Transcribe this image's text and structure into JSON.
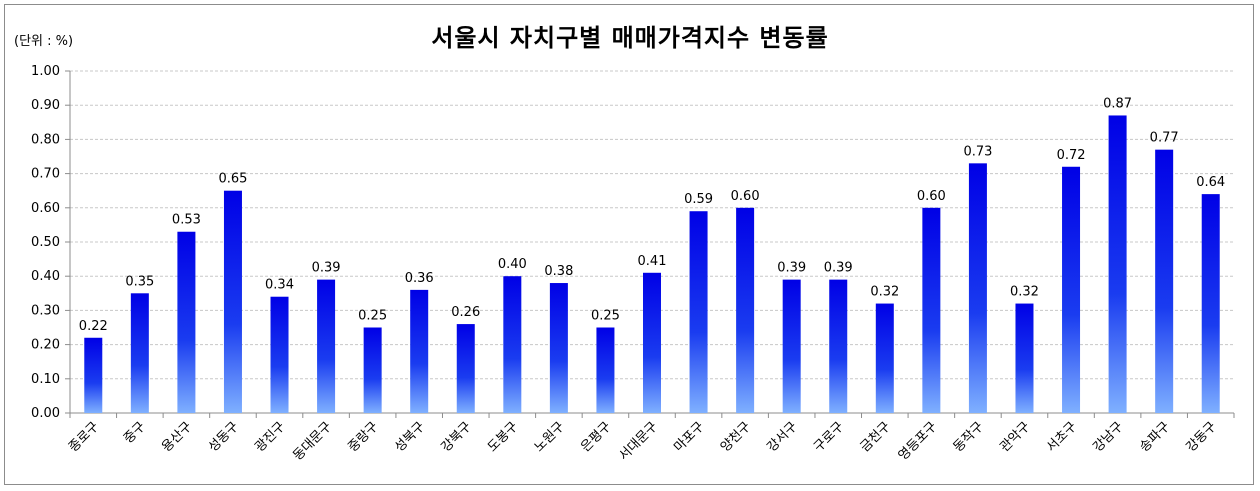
{
  "unit_label": "(단위 : %)",
  "colors": {
    "bar_top": "#0000e6",
    "bar_bottom": "#7fb0ff",
    "grid": "#c8c8c8",
    "axis": "#8c8c8c"
  },
  "chart_data": {
    "type": "bar",
    "title": "서울시 자치구별 매매가격지수 변동률",
    "xlabel": "",
    "ylabel": "",
    "ylim": [
      0,
      1.0
    ],
    "yticks": [
      "0.00",
      "0.10",
      "0.20",
      "0.30",
      "0.40",
      "0.50",
      "0.60",
      "0.70",
      "0.80",
      "0.90",
      "1.00"
    ],
    "grid": true,
    "legend": "none",
    "categories": [
      "종로구",
      "중구",
      "용산구",
      "성동구",
      "광진구",
      "동대문구",
      "중랑구",
      "성북구",
      "강북구",
      "도봉구",
      "노원구",
      "은평구",
      "서대문구",
      "마포구",
      "양천구",
      "강서구",
      "구로구",
      "금천구",
      "영등포구",
      "동작구",
      "관악구",
      "서초구",
      "강남구",
      "송파구",
      "강동구"
    ],
    "values": [
      0.22,
      0.35,
      0.53,
      0.65,
      0.34,
      0.39,
      0.25,
      0.36,
      0.26,
      0.4,
      0.38,
      0.25,
      0.41,
      0.59,
      0.6,
      0.39,
      0.39,
      0.32,
      0.6,
      0.73,
      0.32,
      0.72,
      0.87,
      0.77,
      0.64
    ],
    "data_labels": [
      "0.22",
      "0.35",
      "0.53",
      "0.65",
      "0.34",
      "0.39",
      "0.25",
      "0.36",
      "0.26",
      "0.40",
      "0.38",
      "0.25",
      "0.41",
      "0.59",
      "0.60",
      "0.39",
      "0.39",
      "0.32",
      "0.60",
      "0.73",
      "0.32",
      "0.72",
      "0.87",
      "0.77",
      "0.64"
    ]
  }
}
